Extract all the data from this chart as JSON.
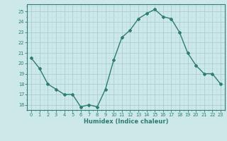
{
  "x": [
    0,
    1,
    2,
    3,
    4,
    5,
    6,
    7,
    8,
    9,
    10,
    11,
    12,
    13,
    14,
    15,
    16,
    17,
    18,
    19,
    20,
    21,
    22,
    23
  ],
  "y": [
    20.5,
    19.5,
    18.0,
    17.5,
    17.0,
    17.0,
    15.8,
    16.0,
    15.8,
    17.5,
    20.3,
    22.5,
    23.2,
    24.3,
    24.8,
    25.2,
    24.5,
    24.3,
    23.0,
    21.0,
    19.8,
    19.0,
    19.0,
    18.0
  ],
  "line_color": "#2e7d6e",
  "marker": "D",
  "marker_size": 2.0,
  "bg_color": "#cce8e8",
  "grid_major_color": "#aacece",
  "grid_minor_color": "#bbdddd",
  "axis_color": "#2e7d6e",
  "tick_color": "#2e7d6e",
  "xlabel": "Humidex (Indice chaleur)",
  "ylabel_vals": [
    16,
    17,
    18,
    19,
    20,
    21,
    22,
    23,
    24,
    25
  ],
  "xlim": [
    -0.5,
    23.5
  ],
  "ylim": [
    15.5,
    25.7
  ]
}
